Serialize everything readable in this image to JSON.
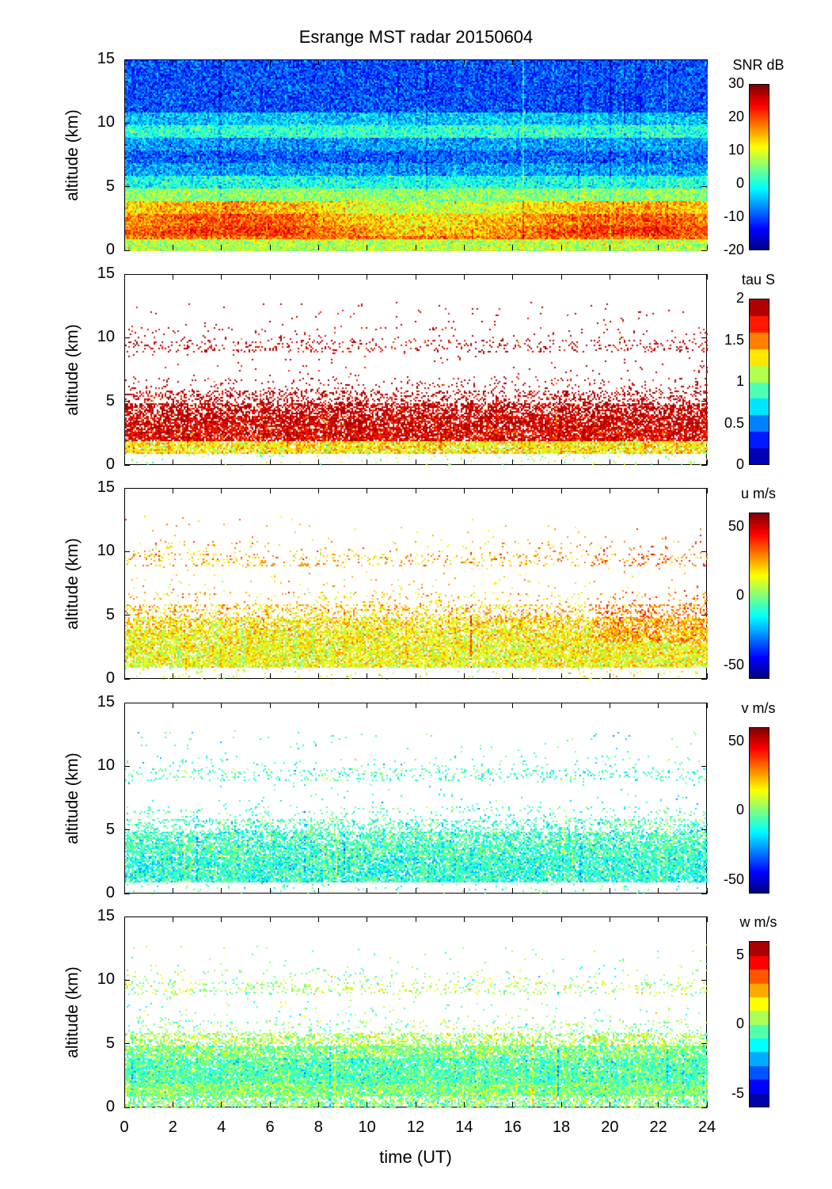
{
  "title": "Esrange MST radar 20150604",
  "chart_data": {
    "type": "heatmap",
    "title": "Esrange MST radar 20150604",
    "xlabel": "time (UT)",
    "ylabel": "altitude (km)",
    "xlim": [
      0,
      24
    ],
    "xticks": [
      0,
      2,
      4,
      6,
      8,
      10,
      12,
      14,
      16,
      18,
      20,
      22,
      24
    ],
    "ylim": [
      0,
      15
    ],
    "yticks": [
      0,
      5,
      10,
      15
    ],
    "altitude_bins_km": [
      0.5,
      1.5,
      2.5,
      3.5,
      4.5,
      5.5,
      6.5,
      7.5,
      8.5,
      9.5,
      10.5,
      11.5,
      12.5,
      13.5,
      14.5
    ],
    "panels": [
      {
        "name": "snr",
        "colorbar_label": "SNR dB",
        "clim": [
          -20,
          30
        ],
        "cticks": [
          -20,
          -10,
          0,
          10,
          20,
          30
        ],
        "levels": 64,
        "mean_profile": [
          8,
          18,
          16,
          12,
          6,
          0,
          -6,
          -9,
          -6,
          1,
          -4,
          -10,
          -10,
          -10,
          -10
        ],
        "coverage": [
          1,
          1,
          1,
          1,
          1,
          1,
          1,
          1,
          1,
          1,
          1,
          1,
          1,
          1,
          1
        ]
      },
      {
        "name": "tau",
        "colorbar_label": "tau S",
        "clim": [
          0,
          2
        ],
        "cticks": [
          0,
          0.5,
          1,
          1.5,
          2
        ],
        "levels": 10,
        "mean_profile": [
          1.1,
          1.3,
          1.8,
          1.85,
          1.9,
          1.9,
          1.9,
          1.9,
          1.9,
          1.9,
          1.9,
          1.9,
          1.9,
          1.9,
          1.9
        ],
        "coverage": [
          0.04,
          0.85,
          0.85,
          0.8,
          0.65,
          0.3,
          0.08,
          0.02,
          0.01,
          0.15,
          0.04,
          0.01,
          0.01,
          0,
          0
        ]
      },
      {
        "name": "u",
        "colorbar_label": "u m/s",
        "clim": [
          -60,
          60
        ],
        "cticks": [
          -50,
          0,
          50
        ],
        "levels": 64,
        "mean_profile": [
          12,
          14,
          15,
          16,
          18,
          22,
          22,
          20,
          20,
          24,
          25,
          25,
          25,
          25,
          25
        ],
        "coverage": [
          0.04,
          0.85,
          0.85,
          0.8,
          0.65,
          0.3,
          0.08,
          0.02,
          0.01,
          0.15,
          0.04,
          0.01,
          0.01,
          0,
          0
        ]
      },
      {
        "name": "v",
        "colorbar_label": "v m/s",
        "clim": [
          -60,
          60
        ],
        "cticks": [
          -50,
          0,
          50
        ],
        "levels": 64,
        "mean_profile": [
          -8,
          -10,
          -10,
          -8,
          -8,
          -8,
          -8,
          -10,
          -10,
          -8,
          -8,
          -8,
          -8,
          -8,
          -8
        ],
        "coverage": [
          0.04,
          0.85,
          0.85,
          0.8,
          0.65,
          0.3,
          0.08,
          0.02,
          0.01,
          0.15,
          0.04,
          0.01,
          0.01,
          0,
          0
        ]
      },
      {
        "name": "w",
        "colorbar_label": "w m/s",
        "clim": [
          -6,
          6
        ],
        "cticks": [
          -5,
          0,
          5
        ],
        "levels": 12,
        "mean_profile": [
          0,
          0,
          -0.5,
          -0.5,
          0,
          0.5,
          0,
          0,
          0,
          0.5,
          0,
          0,
          0,
          0,
          0
        ],
        "coverage": [
          0.6,
          0.95,
          0.95,
          0.9,
          0.8,
          0.45,
          0.1,
          0.02,
          0.01,
          0.15,
          0.04,
          0.01,
          0.01,
          0,
          0
        ]
      }
    ]
  }
}
